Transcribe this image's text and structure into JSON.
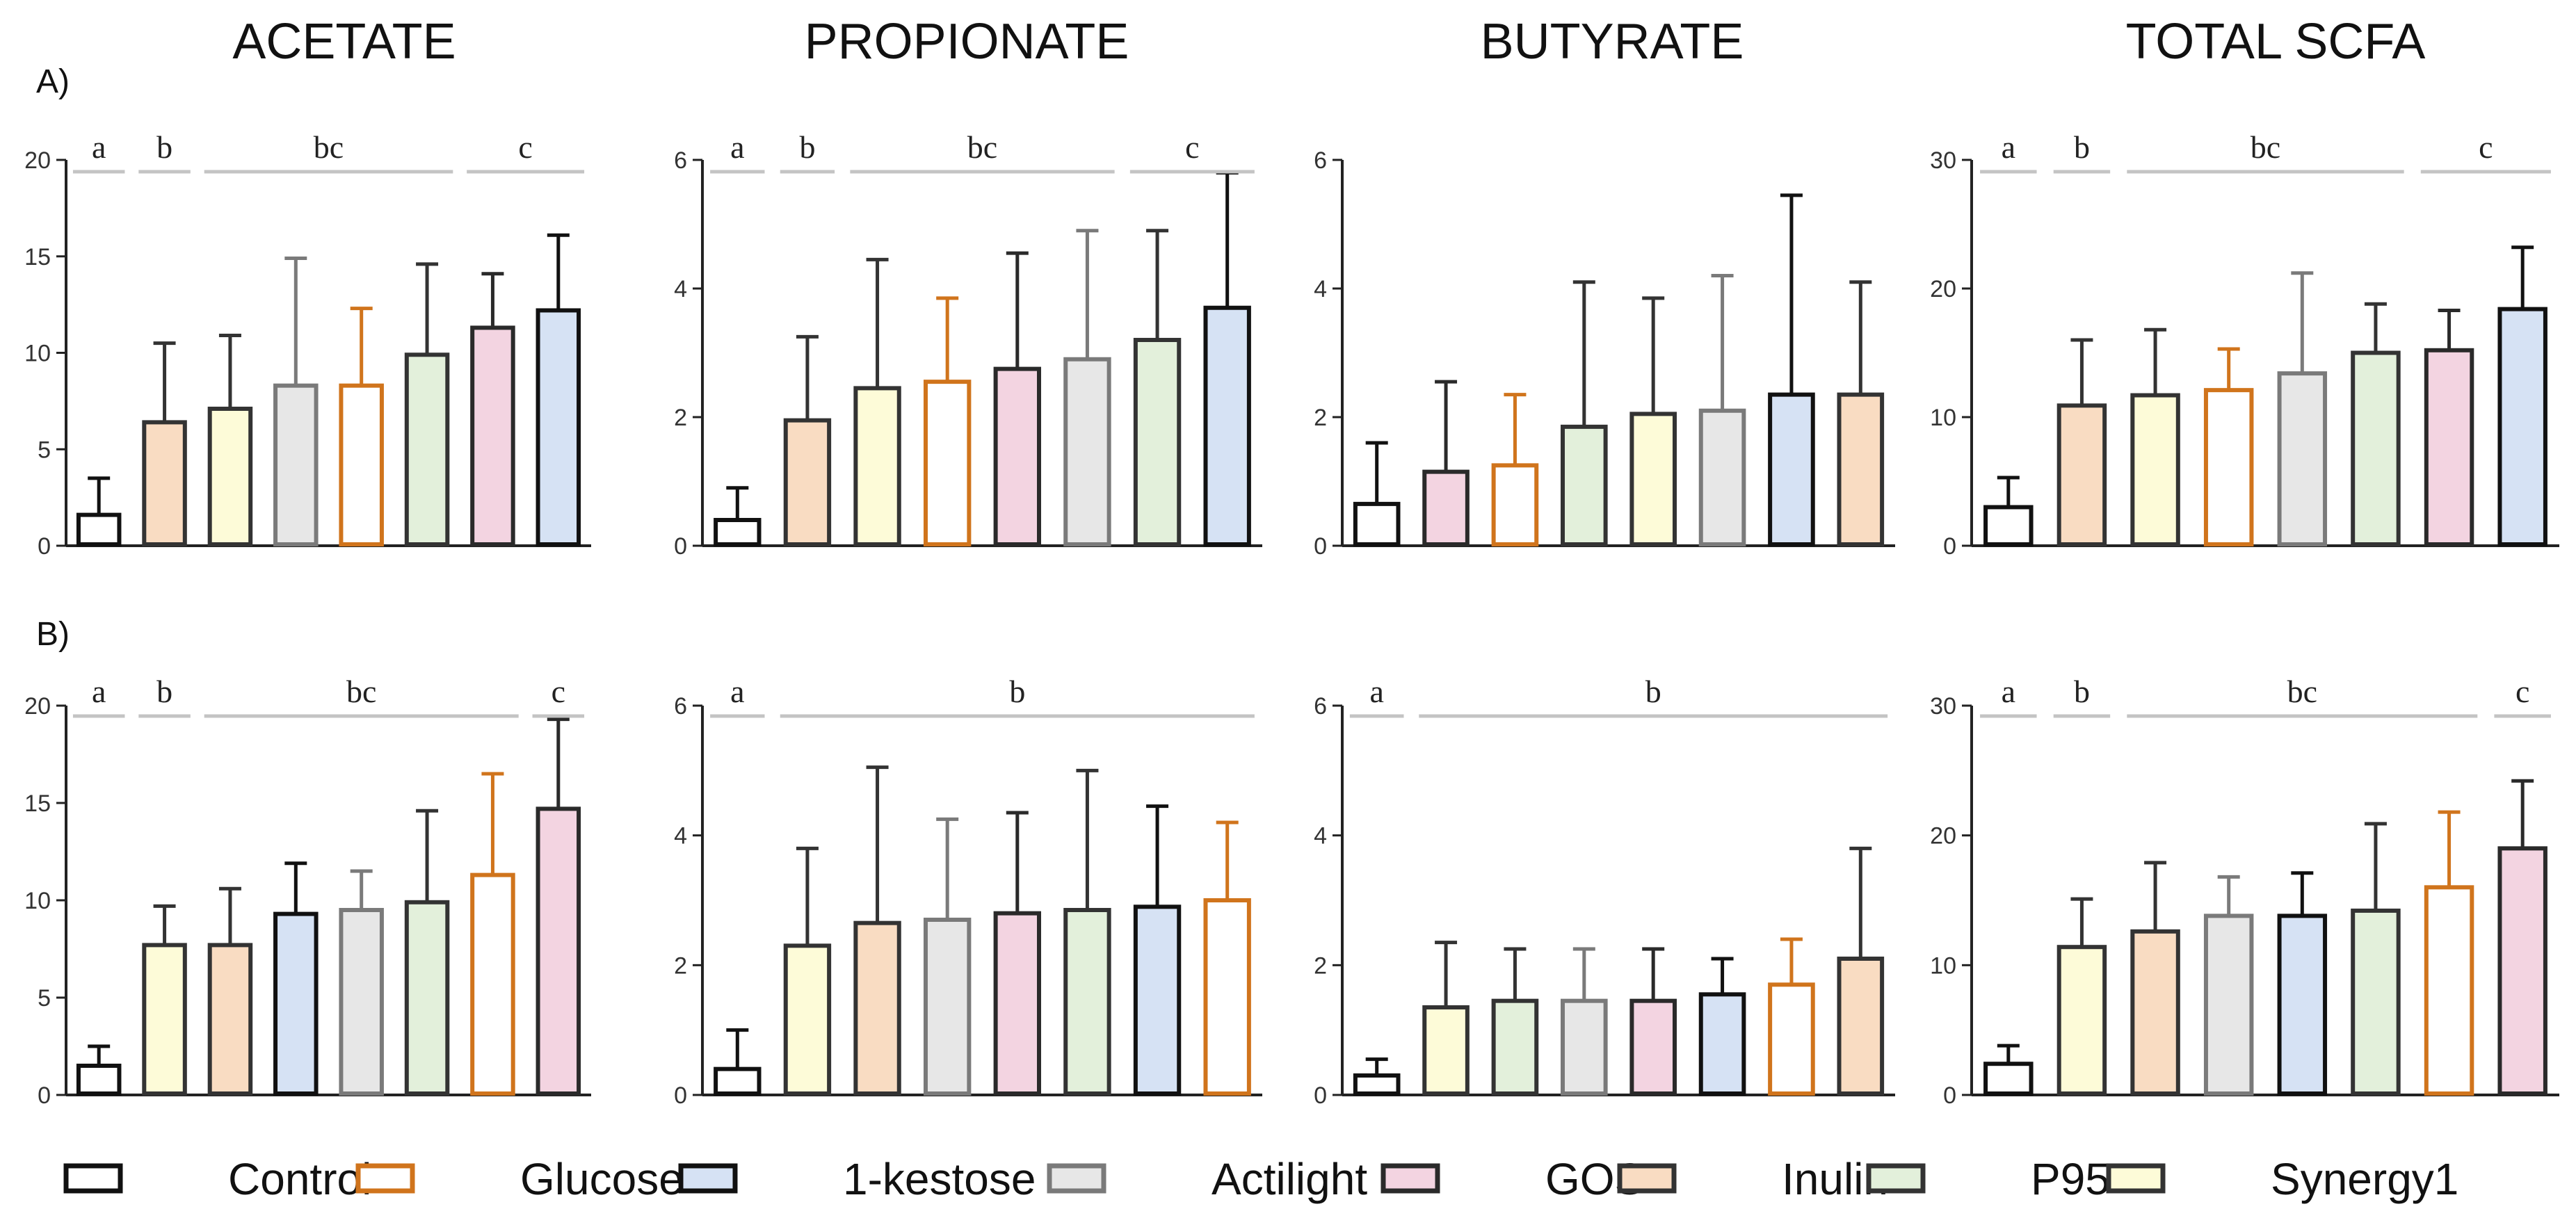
{
  "figure": {
    "column_titles": [
      "ACETATE",
      "PROPIONATE",
      "BUTYRATE",
      "TOTAL SCFA"
    ],
    "row_labels": [
      "A)",
      "B)"
    ]
  },
  "treatments": [
    {
      "name": "Control",
      "fill": "#ffffff",
      "stroke": "#111111"
    },
    {
      "name": "Glucose",
      "fill": "#ffffff",
      "stroke": "#d0741c"
    },
    {
      "name": "1-kestose",
      "fill": "#d6e2f4",
      "stroke": "#111111"
    },
    {
      "name": "Actilight",
      "fill": "#e7e7e7",
      "stroke": "#7a7a7a"
    },
    {
      "name": "GOS",
      "fill": "#f3d4e1",
      "stroke": "#2a2a2a"
    },
    {
      "name": "Inulin",
      "fill": "#f9dcc2",
      "stroke": "#333333"
    },
    {
      "name": "P95",
      "fill": "#e3f0db",
      "stroke": "#333333"
    },
    {
      "name": "Synergy1",
      "fill": "#fdfbd8",
      "stroke": "#333333"
    }
  ],
  "chart_data": [
    {
      "type": "bar",
      "row": "A)",
      "title": "ACETATE",
      "ylim": [
        0,
        20
      ],
      "yticks": [
        0,
        5,
        10,
        15,
        20
      ],
      "bars": [
        {
          "t": "Control",
          "v": 1.6,
          "e": 3.5
        },
        {
          "t": "Inulin",
          "v": 6.4,
          "e": 10.5
        },
        {
          "t": "Synergy1",
          "v": 7.1,
          "e": 10.9
        },
        {
          "t": "Actilight",
          "v": 8.3,
          "e": 14.9
        },
        {
          "t": "Glucose",
          "v": 8.3,
          "e": 12.3
        },
        {
          "t": "P95",
          "v": 9.9,
          "e": 14.6
        },
        {
          "t": "GOS",
          "v": 11.3,
          "e": 14.1
        },
        {
          "t": "1-kestose",
          "v": 12.2,
          "e": 16.1
        }
      ],
      "letters": [
        {
          "label": "a",
          "from": 0,
          "to": 0
        },
        {
          "label": "b",
          "from": 1,
          "to": 1
        },
        {
          "label": "bc",
          "from": 2,
          "to": 5
        },
        {
          "label": "c",
          "from": 6,
          "to": 7
        }
      ]
    },
    {
      "type": "bar",
      "row": "A)",
      "title": "PROPIONATE",
      "ylim": [
        0,
        6
      ],
      "yticks": [
        0,
        2,
        4,
        6
      ],
      "bars": [
        {
          "t": "Control",
          "v": 0.4,
          "e": 0.9
        },
        {
          "t": "Inulin",
          "v": 1.95,
          "e": 3.25
        },
        {
          "t": "Synergy1",
          "v": 2.45,
          "e": 4.45
        },
        {
          "t": "Glucose",
          "v": 2.55,
          "e": 3.85
        },
        {
          "t": "GOS",
          "v": 2.75,
          "e": 4.55
        },
        {
          "t": "Actilight",
          "v": 2.9,
          "e": 4.9
        },
        {
          "t": "P95",
          "v": 3.2,
          "e": 4.9
        },
        {
          "t": "1-kestose",
          "v": 3.7,
          "e": 5.8
        }
      ],
      "letters": [
        {
          "label": "a",
          "from": 0,
          "to": 0
        },
        {
          "label": "b",
          "from": 1,
          "to": 1
        },
        {
          "label": "bc",
          "from": 2,
          "to": 5
        },
        {
          "label": "c",
          "from": 6,
          "to": 7
        }
      ]
    },
    {
      "type": "bar",
      "row": "A)",
      "title": "BUTYRATE",
      "ylim": [
        0,
        6
      ],
      "yticks": [
        0,
        2,
        4,
        6
      ],
      "bars": [
        {
          "t": "Control",
          "v": 0.65,
          "e": 1.6
        },
        {
          "t": "GOS",
          "v": 1.15,
          "e": 2.55
        },
        {
          "t": "Glucose",
          "v": 1.25,
          "e": 2.35
        },
        {
          "t": "P95",
          "v": 1.85,
          "e": 4.1
        },
        {
          "t": "Synergy1",
          "v": 2.05,
          "e": 3.85
        },
        {
          "t": "Actilight",
          "v": 2.1,
          "e": 4.2
        },
        {
          "t": "1-kestose",
          "v": 2.35,
          "e": 5.45
        },
        {
          "t": "Inulin",
          "v": 2.35,
          "e": 4.1
        }
      ],
      "letters": []
    },
    {
      "type": "bar",
      "row": "A)",
      "title": "TOTAL SCFA",
      "ylim": [
        0,
        30
      ],
      "yticks": [
        0,
        10,
        20,
        30
      ],
      "bars": [
        {
          "t": "Control",
          "v": 3.0,
          "e": 5.3
        },
        {
          "t": "Inulin",
          "v": 10.9,
          "e": 16.0
        },
        {
          "t": "Synergy1",
          "v": 11.7,
          "e": 16.8
        },
        {
          "t": "Glucose",
          "v": 12.1,
          "e": 15.3
        },
        {
          "t": "Actilight",
          "v": 13.4,
          "e": 21.2
        },
        {
          "t": "P95",
          "v": 15.0,
          "e": 18.8
        },
        {
          "t": "GOS",
          "v": 15.2,
          "e": 18.3
        },
        {
          "t": "1-kestose",
          "v": 18.4,
          "e": 23.2
        }
      ],
      "letters": [
        {
          "label": "a",
          "from": 0,
          "to": 0
        },
        {
          "label": "b",
          "from": 1,
          "to": 1
        },
        {
          "label": "bc",
          "from": 2,
          "to": 5
        },
        {
          "label": "c",
          "from": 6,
          "to": 7
        }
      ]
    },
    {
      "type": "bar",
      "row": "B)",
      "title": "ACETATE",
      "ylim": [
        0,
        20
      ],
      "yticks": [
        0,
        5,
        10,
        15,
        20
      ],
      "bars": [
        {
          "t": "Control",
          "v": 1.5,
          "e": 2.5
        },
        {
          "t": "Synergy1",
          "v": 7.7,
          "e": 9.7
        },
        {
          "t": "Inulin",
          "v": 7.7,
          "e": 10.6
        },
        {
          "t": "1-kestose",
          "v": 9.3,
          "e": 11.9
        },
        {
          "t": "Actilight",
          "v": 9.5,
          "e": 11.5
        },
        {
          "t": "P95",
          "v": 9.9,
          "e": 14.6
        },
        {
          "t": "Glucose",
          "v": 11.3,
          "e": 16.5
        },
        {
          "t": "GOS",
          "v": 14.7,
          "e": 19.3
        }
      ],
      "letters": [
        {
          "label": "a",
          "from": 0,
          "to": 0
        },
        {
          "label": "b",
          "from": 1,
          "to": 1
        },
        {
          "label": "bc",
          "from": 2,
          "to": 6
        },
        {
          "label": "c",
          "from": 7,
          "to": 7
        }
      ]
    },
    {
      "type": "bar",
      "row": "B)",
      "title": "PROPIONATE",
      "ylim": [
        0,
        6
      ],
      "yticks": [
        0,
        2,
        4,
        6
      ],
      "bars": [
        {
          "t": "Control",
          "v": 0.4,
          "e": 1.0
        },
        {
          "t": "Synergy1",
          "v": 2.3,
          "e": 3.8
        },
        {
          "t": "Inulin",
          "v": 2.65,
          "e": 5.05
        },
        {
          "t": "Actilight",
          "v": 2.7,
          "e": 4.25
        },
        {
          "t": "GOS",
          "v": 2.8,
          "e": 4.35
        },
        {
          "t": "P95",
          "v": 2.85,
          "e": 5.0
        },
        {
          "t": "1-kestose",
          "v": 2.9,
          "e": 4.45
        },
        {
          "t": "Glucose",
          "v": 3.0,
          "e": 4.2
        }
      ],
      "letters": [
        {
          "label": "a",
          "from": 0,
          "to": 0
        },
        {
          "label": "b",
          "from": 1,
          "to": 7
        }
      ]
    },
    {
      "type": "bar",
      "row": "B)",
      "title": "BUTYRATE",
      "ylim": [
        0,
        6
      ],
      "yticks": [
        0,
        2,
        4,
        6
      ],
      "bars": [
        {
          "t": "Control",
          "v": 0.3,
          "e": 0.55
        },
        {
          "t": "Synergy1",
          "v": 1.35,
          "e": 2.35
        },
        {
          "t": "P95",
          "v": 1.45,
          "e": 2.25
        },
        {
          "t": "Actilight",
          "v": 1.45,
          "e": 2.25
        },
        {
          "t": "GOS",
          "v": 1.45,
          "e": 2.25
        },
        {
          "t": "1-kestose",
          "v": 1.55,
          "e": 2.1
        },
        {
          "t": "Glucose",
          "v": 1.7,
          "e": 2.4
        },
        {
          "t": "Inulin",
          "v": 2.1,
          "e": 3.8
        }
      ],
      "letters": [
        {
          "label": "a",
          "from": 0,
          "to": 0
        },
        {
          "label": "b",
          "from": 1,
          "to": 7
        }
      ]
    },
    {
      "type": "bar",
      "row": "B)",
      "title": "TOTAL SCFA",
      "ylim": [
        0,
        30
      ],
      "yticks": [
        0,
        10,
        20,
        30
      ],
      "bars": [
        {
          "t": "Control",
          "v": 2.4,
          "e": 3.8
        },
        {
          "t": "Synergy1",
          "v": 11.4,
          "e": 15.1
        },
        {
          "t": "Inulin",
          "v": 12.6,
          "e": 17.9
        },
        {
          "t": "Actilight",
          "v": 13.8,
          "e": 16.8
        },
        {
          "t": "1-kestose",
          "v": 13.8,
          "e": 17.1
        },
        {
          "t": "P95",
          "v": 14.2,
          "e": 20.9
        },
        {
          "t": "Glucose",
          "v": 16.0,
          "e": 21.8
        },
        {
          "t": "GOS",
          "v": 19.0,
          "e": 24.2
        }
      ],
      "letters": [
        {
          "label": "a",
          "from": 0,
          "to": 0
        },
        {
          "label": "b",
          "from": 1,
          "to": 1
        },
        {
          "label": "bc",
          "from": 2,
          "to": 6
        },
        {
          "label": "c",
          "from": 7,
          "to": 7
        }
      ]
    }
  ]
}
